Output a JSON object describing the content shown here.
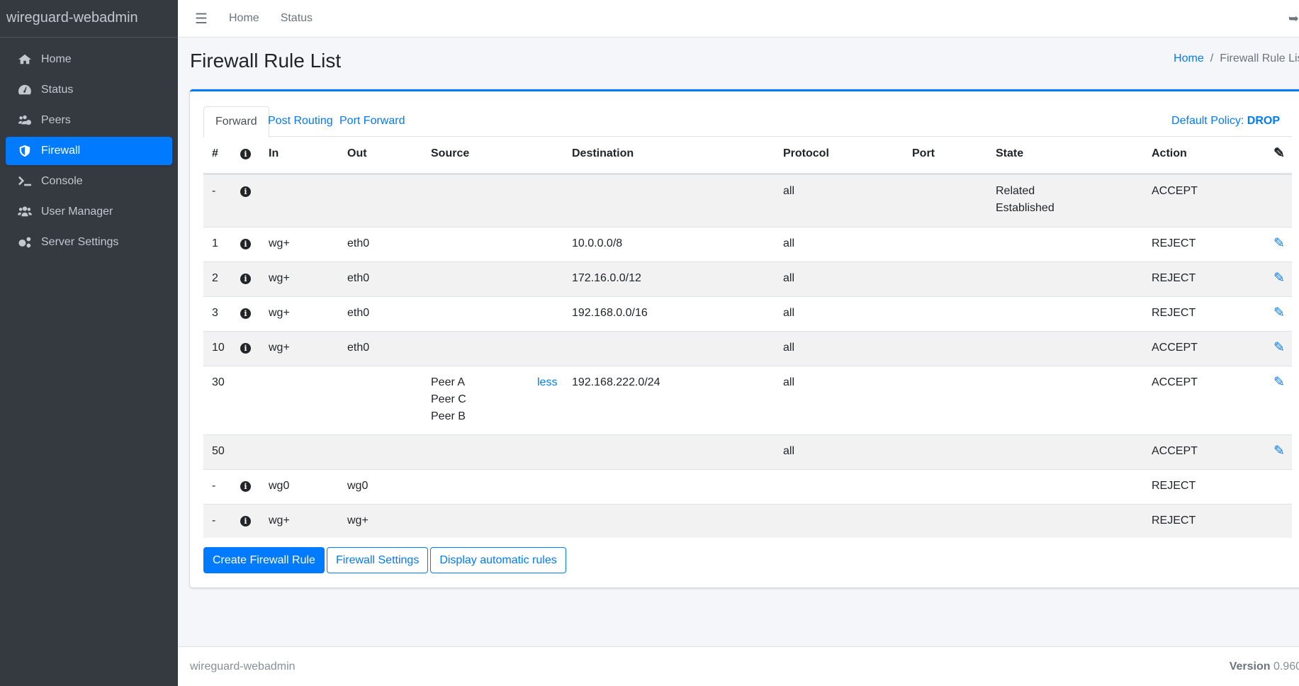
{
  "app": {
    "brand": "wireguard-webadmin"
  },
  "sidebar": {
    "items": [
      {
        "label": "Home",
        "icon": "home-icon"
      },
      {
        "label": "Status",
        "icon": "tachometer-icon"
      },
      {
        "label": "Peers",
        "icon": "users-cog-icon"
      },
      {
        "label": "Firewall",
        "icon": "shield-icon",
        "active": true
      },
      {
        "label": "Console",
        "icon": "terminal-icon"
      },
      {
        "label": "User Manager",
        "icon": "users-icon"
      },
      {
        "label": "Server Settings",
        "icon": "cogs-icon"
      }
    ]
  },
  "topbar": {
    "links": [
      "Home",
      "Status"
    ],
    "menu_icon": "bars-icon",
    "logout_icon": "sign-out-icon"
  },
  "page": {
    "title": "Firewall Rule List",
    "breadcrumb": [
      "Home",
      "Firewall Rule List"
    ]
  },
  "tabs": [
    "Forward",
    "Post Routing",
    "Port Forward"
  ],
  "policy": {
    "label": "Default Policy:",
    "value": "DROP"
  },
  "table": {
    "headers": [
      "#",
      "",
      "In",
      "Out",
      "Source",
      "Destination",
      "Protocol",
      "Port",
      "State",
      "Action"
    ],
    "rows": [
      {
        "num": "-",
        "info": true,
        "in": "",
        "out": "",
        "source": [],
        "less": "",
        "dest": "",
        "proto": "all",
        "port": "",
        "state": [
          "Related",
          "Established"
        ],
        "action": "ACCEPT",
        "edit": false
      },
      {
        "num": "1",
        "info": true,
        "in": "wg+",
        "out": "eth0",
        "source": [],
        "less": "",
        "dest": "10.0.0.0/8",
        "proto": "all",
        "port": "",
        "state": [],
        "action": "REJECT",
        "edit": true
      },
      {
        "num": "2",
        "info": true,
        "in": "wg+",
        "out": "eth0",
        "source": [],
        "less": "",
        "dest": "172.16.0.0/12",
        "proto": "all",
        "port": "",
        "state": [],
        "action": "REJECT",
        "edit": true
      },
      {
        "num": "3",
        "info": true,
        "in": "wg+",
        "out": "eth0",
        "source": [],
        "less": "",
        "dest": "192.168.0.0/16",
        "proto": "all",
        "port": "",
        "state": [],
        "action": "REJECT",
        "edit": true
      },
      {
        "num": "10",
        "info": true,
        "in": "wg+",
        "out": "eth0",
        "source": [],
        "less": "",
        "dest": "",
        "proto": "all",
        "port": "",
        "state": [],
        "action": "ACCEPT",
        "edit": true
      },
      {
        "num": "30",
        "info": false,
        "in": "",
        "out": "",
        "source": [
          "Peer A",
          "Peer C",
          "Peer B"
        ],
        "less": "less",
        "dest": "192.168.222.0/24",
        "proto": "all",
        "port": "",
        "state": [],
        "action": "ACCEPT",
        "edit": true
      },
      {
        "num": "50",
        "info": false,
        "in": "",
        "out": "",
        "source": [],
        "less": "",
        "dest": "",
        "proto": "all",
        "port": "",
        "state": [],
        "action": "ACCEPT",
        "edit": true
      },
      {
        "num": "-",
        "info": true,
        "in": "wg0",
        "out": "wg0",
        "source": [],
        "less": "",
        "dest": "",
        "proto": "",
        "port": "",
        "state": [],
        "action": "REJECT",
        "edit": false
      },
      {
        "num": "-",
        "info": true,
        "in": "wg+",
        "out": "wg+",
        "source": [],
        "less": "",
        "dest": "",
        "proto": "",
        "port": "",
        "state": [],
        "action": "REJECT",
        "edit": false
      }
    ]
  },
  "buttons": {
    "create": "Create Firewall Rule",
    "settings": "Firewall Settings",
    "auto": "Display automatic rules"
  },
  "footer": {
    "left": "wireguard-webadmin",
    "version_label": "Version",
    "version": "0.960"
  },
  "colors": {
    "accent": "#007bff",
    "sidebar": "#343a40"
  }
}
